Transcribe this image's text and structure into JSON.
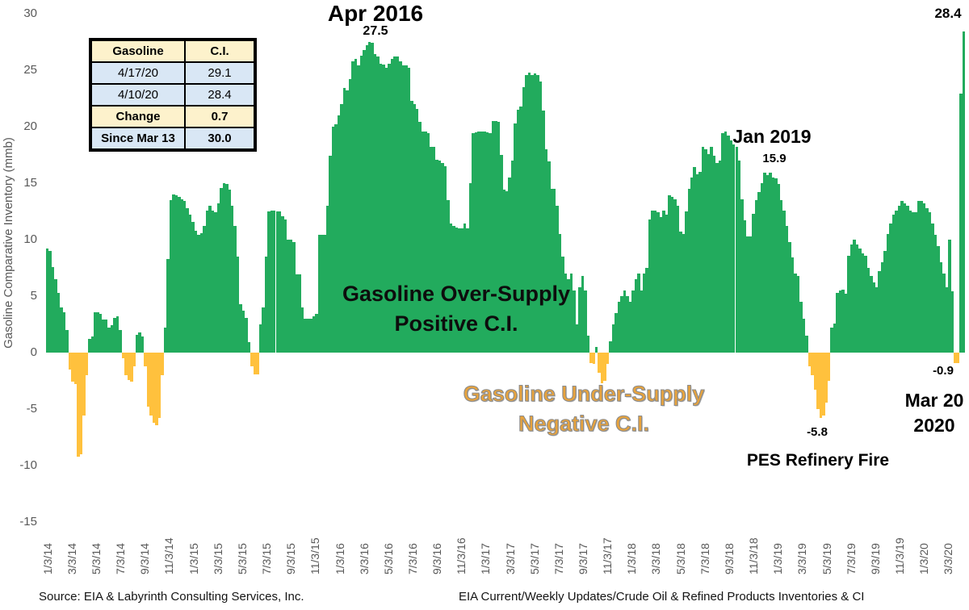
{
  "chart_data": {
    "type": "bar",
    "title": "",
    "ylabel": "Gasoline Comparative Inventory (mmb)",
    "ylim": [
      -15,
      30
    ],
    "y_ticks": [
      30,
      25,
      20,
      15,
      10,
      5,
      0,
      -5,
      -10,
      -15
    ],
    "grid": false,
    "legend": false,
    "positive_color": "#22ab5d",
    "negative_color": "#ffc13d",
    "x_tick_labels": [
      "1/3/14",
      "3/3/14",
      "5/3/14",
      "7/3/14",
      "9/3/14",
      "11/3/14",
      "1/3/15",
      "3/3/15",
      "5/3/15",
      "7/3/15",
      "9/3/15",
      "11/3/15",
      "1/3/16",
      "3/3/16",
      "5/3/16",
      "7/3/16",
      "9/3/16",
      "11/3/16",
      "1/3/17",
      "3/3/17",
      "5/3/17",
      "7/3/17",
      "9/3/17",
      "11/3/17",
      "1/3/18",
      "3/3/18",
      "5/3/18",
      "7/3/18",
      "9/3/18",
      "11/3/18",
      "1/3/19",
      "3/3/19",
      "5/3/19",
      "7/3/19",
      "9/3/19",
      "11/3/19",
      "1/3/20",
      "3/3/20"
    ],
    "x_tick_interval_weeks": 8.69,
    "series_name": "Weekly Gasoline Comparative Inventory (mmb)",
    "values": [
      9.2,
      9.0,
      7.6,
      6.5,
      5.3,
      4.0,
      3.6,
      2.0,
      -1.5,
      -2.6,
      -2.8,
      -9.2,
      -9.0,
      -5.6,
      -2.0,
      1.2,
      1.4,
      3.6,
      3.6,
      3.4,
      2.9,
      2.9,
      2.2,
      2.4,
      3.1,
      3.2,
      2.0,
      -0.5,
      -2.0,
      -2.4,
      -2.6,
      -1.2,
      1.6,
      1.8,
      1.4,
      -1.2,
      -4.8,
      -5.6,
      -6.2,
      -6.4,
      -5.8,
      -2.0,
      2.2,
      8.3,
      13.5,
      14.0,
      13.9,
      13.8,
      13.6,
      13.4,
      12.8,
      12.2,
      11.6,
      10.8,
      10.4,
      10.6,
      11.2,
      12.6,
      13.0,
      12.6,
      12.4,
      13.2,
      14.6,
      15.0,
      14.9,
      14.4,
      13.0,
      11.2,
      8.5,
      4.3,
      3.7,
      3.1,
      0.9,
      -1.2,
      -1.9,
      -1.9,
      2.5,
      4.0,
      8.5,
      12.5,
      12.6,
      12.6,
      12.5,
      12.5,
      12.1,
      11.8,
      10.0,
      10.0,
      9.8,
      6.9,
      6.9,
      4.0,
      3.0,
      3.0,
      3.0,
      3.2,
      3.4,
      10.4,
      10.4,
      10.4,
      13.0,
      17.4,
      20.0,
      20.2,
      21.0,
      22.0,
      23.4,
      23.2,
      24.2,
      25.8,
      26.0,
      25.4,
      26.3,
      26.8,
      27.2,
      27.5,
      27.4,
      26.4,
      26.2,
      25.6,
      25.5,
      25.2,
      25.6,
      26.0,
      26.2,
      26.2,
      25.8,
      25.4,
      25.4,
      25.2,
      22.3,
      22.0,
      21.6,
      20.4,
      19.6,
      19.6,
      19.4,
      18.2,
      18.2,
      17.1,
      17.0,
      16.8,
      16.5,
      13.5,
      11.4,
      11.2,
      11.1,
      11.0,
      11.0,
      11.4,
      11.0,
      15.0,
      19.4,
      19.5,
      19.6,
      19.6,
      19.6,
      19.5,
      19.4,
      20.5,
      20.5,
      20.4,
      17.5,
      14.4,
      14.3,
      15.5,
      17.0,
      20.3,
      21.5,
      21.8,
      23.5,
      24.6,
      24.8,
      24.6,
      24.7,
      24.6,
      24.0,
      21.4,
      18.0,
      16.9,
      14.5,
      14.5,
      13.0,
      10.5,
      8.5,
      7.0,
      6.5,
      7.0,
      5.5,
      2.5,
      5.8,
      6.8,
      5.5,
      1.5,
      -0.9,
      -1.0,
      0.5,
      -1.8,
      -2.7,
      -2.5,
      -1.0,
      1.0,
      2.5,
      3.5,
      4.5,
      5.0,
      5.5,
      5.0,
      4.5,
      5.5,
      6.5,
      7.0,
      5.5,
      7.0,
      7.5,
      11.8,
      12.6,
      12.6,
      12.4,
      12.0,
      12.6,
      12.2,
      13.9,
      13.8,
      13.6,
      13.0,
      10.7,
      10.5,
      12.5,
      14.5,
      15.5,
      16.4,
      15.8,
      16.0,
      18.2,
      18.0,
      17.6,
      18.2,
      17.4,
      16.8,
      17.0,
      19.4,
      19.6,
      19.2,
      18.8,
      18.4,
      18.2,
      17.0,
      13.6,
      11.7,
      10.3,
      10.3,
      12.3,
      13.5,
      14.2,
      15.0,
      15.9,
      15.7,
      15.9,
      15.5,
      15.4,
      14.9,
      13.5,
      12.6,
      11.2,
      9.8,
      8.4,
      7.0,
      6.8,
      4.5,
      3.0,
      1.5,
      -1.2,
      -2.0,
      -3.3,
      -5.0,
      -5.8,
      -5.6,
      -4.4,
      -2.5,
      2.2,
      2.6,
      5.3,
      5.5,
      5.6,
      5.2,
      8.6,
      9.6,
      10.0,
      9.6,
      9.2,
      8.8,
      8.6,
      7.5,
      6.8,
      6.2,
      5.8,
      7.2,
      8.0,
      9.0,
      10.5,
      11.4,
      12.2,
      12.6,
      13.0,
      13.4,
      13.2,
      13.0,
      12.6,
      12.4,
      12.4,
      13.4,
      13.4,
      13.2,
      12.8,
      12.4,
      11.4,
      10.4,
      9.4,
      8.0,
      7.0,
      5.8,
      10.0,
      5.4,
      -0.9,
      -0.9,
      22.9,
      28.4
    ],
    "annotations": {
      "peak_2016": {
        "title": "Apr 2016",
        "value": "27.5"
      },
      "peak_2019": {
        "title": "Jan 2019",
        "value": "15.9"
      },
      "latest": {
        "value": "28.4"
      },
      "over_supply": {
        "line1": "Gasoline Over-Supply",
        "line2": "Positive C.I."
      },
      "under_supply": {
        "line1": "Gasoline Under-Supply",
        "line2": "Negative C.I."
      },
      "pes_fire": {
        "value": "-5.8",
        "label": "PES Refinery Fire"
      },
      "mar_2020": {
        "value": "-0.9",
        "line1": "Mar 20",
        "line2": "2020"
      }
    }
  },
  "stats_table": {
    "header": {
      "col1": "Gasoline",
      "col2": "C.I."
    },
    "rows": [
      {
        "label": "4/17/20",
        "value": "29.1",
        "bg": "blue",
        "bold": false
      },
      {
        "label": "4/10/20",
        "value": "28.4",
        "bg": "blue",
        "bold": false
      },
      {
        "label": "Change",
        "value": "0.7",
        "bg": "cream",
        "bold": true
      },
      {
        "label": "Since Mar 13",
        "value": "30.0",
        "bg": "blue",
        "bold": true
      }
    ]
  },
  "footer": {
    "left": "Source: EIA & Labyrinth Consulting Services, Inc.",
    "right": "EIA Current/Weekly Updates/Crude Oil & Refined Products Inventories & CI"
  }
}
